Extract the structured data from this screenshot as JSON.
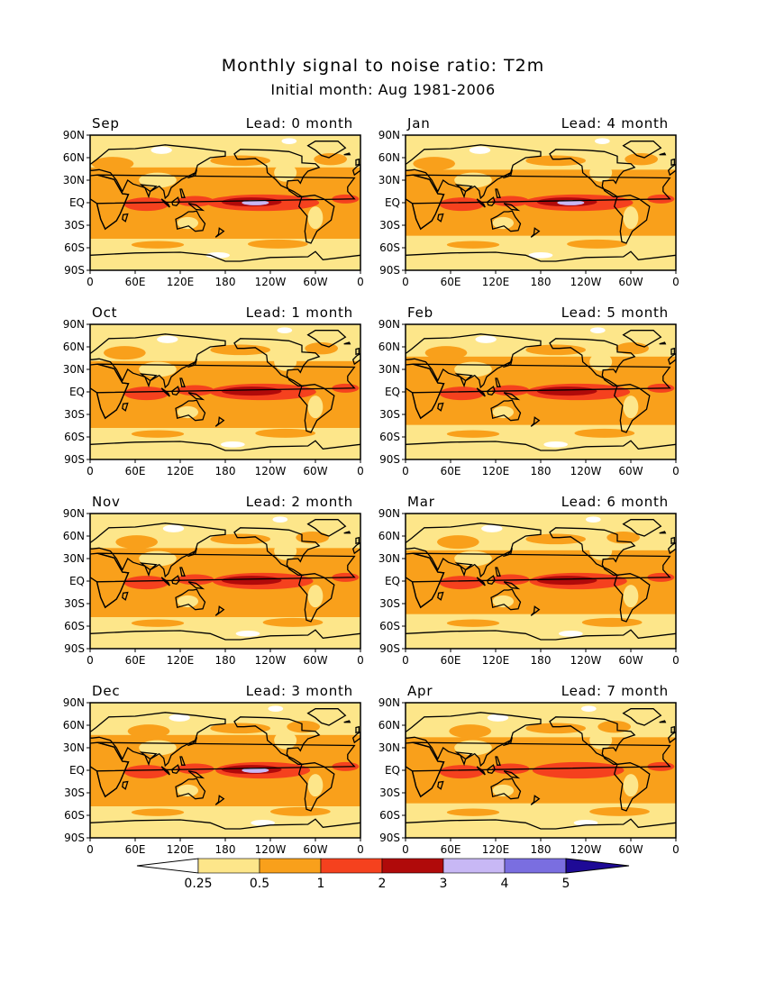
{
  "title": "Monthly signal to noise ratio: T2m",
  "subtitle": "Initial month: Aug 1981-2006",
  "lat_ticks": [
    "90N",
    "60N",
    "30N",
    "EQ",
    "30S",
    "60S",
    "90S"
  ],
  "lon_ticks": [
    "0",
    "60E",
    "120E",
    "180",
    "120W",
    "60W",
    "0"
  ],
  "panels": [
    {
      "month": "Sep",
      "lead": "Lead: 0 month",
      "peak_level": 4
    },
    {
      "month": "Jan",
      "lead": "Lead: 4 month",
      "peak_level": 4
    },
    {
      "month": "Oct",
      "lead": "Lead: 1 month",
      "peak_level": 3
    },
    {
      "month": "Feb",
      "lead": "Lead: 5 month",
      "peak_level": 3
    },
    {
      "month": "Nov",
      "lead": "Lead: 2 month",
      "peak_level": 3
    },
    {
      "month": "Mar",
      "lead": "Lead: 6 month",
      "peak_level": 3
    },
    {
      "month": "Dec",
      "lead": "Lead: 3 month",
      "peak_level": 4
    },
    {
      "month": "Apr",
      "lead": "Lead: 7 month",
      "peak_level": 2
    }
  ],
  "colorbar": {
    "labels": [
      "0.25",
      "0.5",
      "1",
      "2",
      "3",
      "4",
      "5"
    ],
    "colors": [
      "#ffffff",
      "#fde68a",
      "#f9a01b",
      "#f5411e",
      "#b00a0a",
      "#c8b8f5",
      "#7a6ee0",
      "#1e0a96"
    ]
  },
  "chart_data": {
    "type": "heatmap",
    "title": "Monthly signal to noise ratio: T2m",
    "subtitle": "Initial month: Aug 1981-2006",
    "levels": [
      0.25,
      0.5,
      1,
      2,
      3,
      4,
      5
    ],
    "panels": [
      "Sep",
      "Jan",
      "Oct",
      "Feb",
      "Nov",
      "Mar",
      "Dec",
      "Apr"
    ],
    "leads_months": [
      0,
      4,
      1,
      5,
      2,
      6,
      3,
      7
    ],
    "colormap": [
      "#ffffff",
      "#fde68a",
      "#f9a01b",
      "#f5411e",
      "#b00a0a",
      "#c8b8f5",
      "#7a6ee0",
      "#1e0a96"
    ]
  }
}
